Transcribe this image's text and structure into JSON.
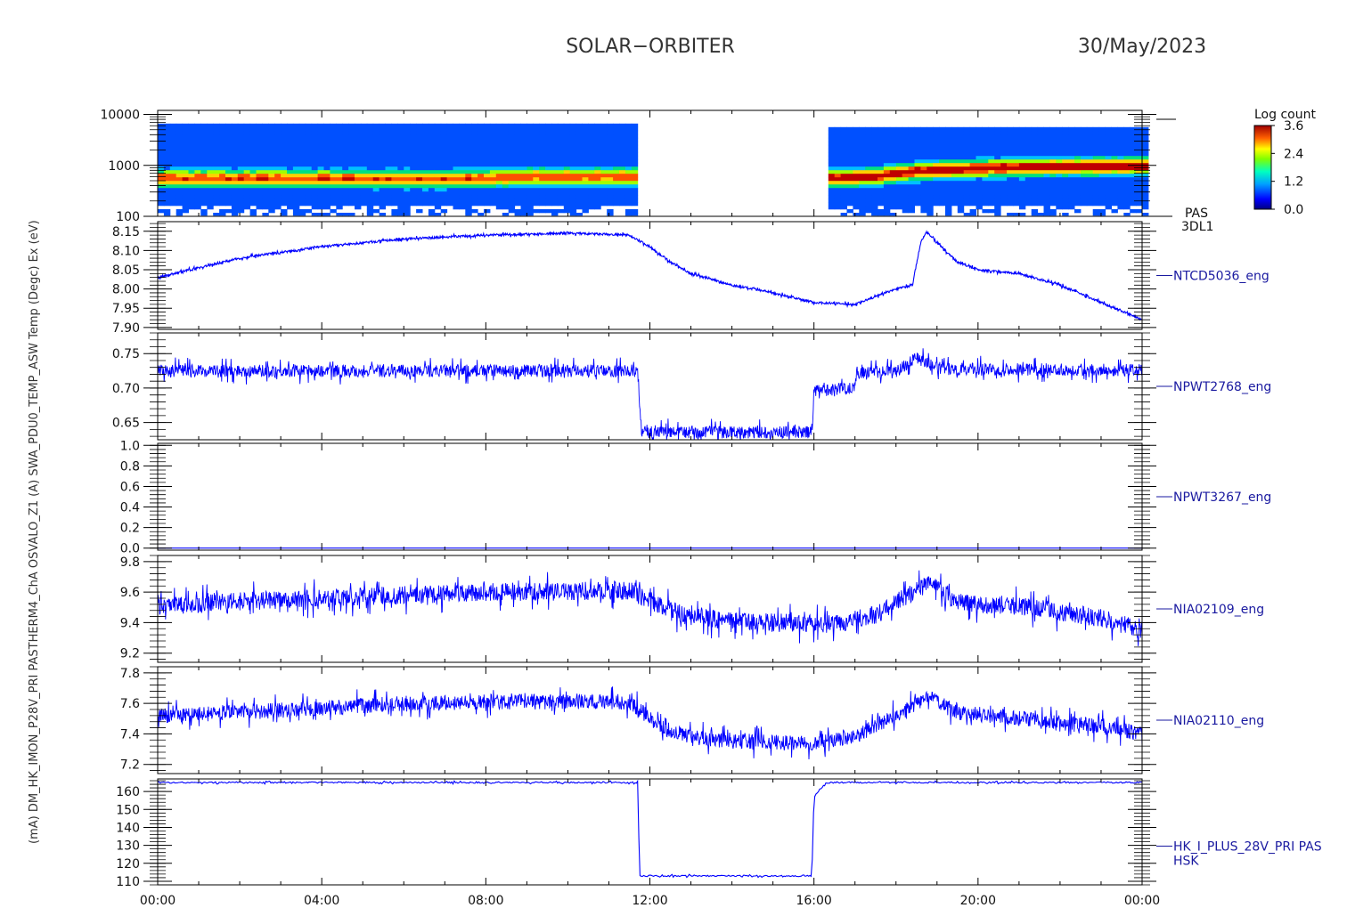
{
  "header": {
    "mission": "SOLAR−ORBITER",
    "date": "30/May/2023"
  },
  "colors": {
    "trace": "#0000ff",
    "label": "#1a1aa0",
    "axis": "#000000"
  },
  "chart_data": {
    "type": "line",
    "x_unit": "hours (UT)",
    "x_range": [
      0,
      24
    ],
    "x_ticks": [
      0,
      4,
      8,
      12,
      16,
      20,
      24
    ],
    "x_tick_labels": [
      "00:00",
      "04:00",
      "08:00",
      "12:00",
      "16:00",
      "20:00",
      "00:00"
    ],
    "y_axis_label_overlap": "(mA) DM_HK_IMON_P28V_PRI PASTHERM4_ChA OSVALO_Z1 (A) SWA_PDU0_TEMP_ASW Temp (Degc) Ex (eV)",
    "panels": [
      {
        "id": "pas-3dl1",
        "type": "heatmap",
        "channel_label": "PAS",
        "channel_label2": "3DL1",
        "y_scale": "log",
        "ylim": [
          100,
          12000
        ],
        "y_ticks": [
          100,
          1000,
          10000
        ],
        "y_tick_labels": [
          "100",
          "1000",
          "10000"
        ],
        "data_gap_hours": [
          11.75,
          16.35
        ],
        "peak_energy_ev": [
          [
            0.5,
            560
          ],
          [
            4,
            560
          ],
          [
            6.5,
            540
          ],
          [
            8,
            560
          ],
          [
            9,
            600
          ],
          [
            11.5,
            600
          ],
          [
            16.4,
            560
          ],
          [
            17.5,
            620
          ],
          [
            18.5,
            780
          ],
          [
            20,
            880
          ],
          [
            22,
            950
          ],
          [
            24,
            980
          ]
        ],
        "colorbar": {
          "label": "Log count",
          "ticks": [
            0.0,
            1.2,
            2.4,
            3.6
          ],
          "tick_labels": [
            "0.0",
            "1.2",
            "2.4",
            "3.6"
          ]
        }
      },
      {
        "id": "ntcd5036",
        "type": "line",
        "channel_label": "NTCD5036_eng",
        "ylim": [
          7.895,
          8.175
        ],
        "y_ticks": [
          7.9,
          7.95,
          8.0,
          8.05,
          8.1,
          8.15
        ],
        "y_tick_labels": [
          "7.90",
          "7.95",
          "8.00",
          "8.05",
          "8.10",
          "8.15"
        ],
        "noise": 0.003,
        "points": [
          [
            0,
            8.03
          ],
          [
            2,
            8.08
          ],
          [
            4,
            8.11
          ],
          [
            6,
            8.13
          ],
          [
            8,
            8.14
          ],
          [
            10,
            8.145
          ],
          [
            11.5,
            8.14
          ],
          [
            12,
            8.11
          ],
          [
            12.5,
            8.07
          ],
          [
            13,
            8.04
          ],
          [
            14,
            8.01
          ],
          [
            15,
            7.99
          ],
          [
            16,
            7.965
          ],
          [
            17,
            7.96
          ],
          [
            18,
            8.0
          ],
          [
            18.4,
            8.01
          ],
          [
            18.6,
            8.12
          ],
          [
            18.75,
            8.15
          ],
          [
            19,
            8.12
          ],
          [
            19.5,
            8.07
          ],
          [
            20,
            8.05
          ],
          [
            21,
            8.04
          ],
          [
            22,
            8.01
          ],
          [
            23,
            7.965
          ],
          [
            24,
            7.92
          ]
        ]
      },
      {
        "id": "npwt2768",
        "type": "line",
        "channel_label": "NPWT2768_eng",
        "ylim": [
          0.625,
          0.78
        ],
        "y_ticks": [
          0.65,
          0.7,
          0.75
        ],
        "y_tick_labels": [
          "0.65",
          "0.70",
          "0.75"
        ],
        "noise": 0.009,
        "points": [
          [
            0,
            0.725
          ],
          [
            11.7,
            0.725
          ],
          [
            11.8,
            0.636
          ],
          [
            15.95,
            0.636
          ],
          [
            16.0,
            0.695
          ],
          [
            17.0,
            0.702
          ],
          [
            17.05,
            0.722
          ],
          [
            18.0,
            0.724
          ],
          [
            18.5,
            0.745
          ],
          [
            19.0,
            0.728
          ],
          [
            24,
            0.726
          ]
        ]
      },
      {
        "id": "npwt3267",
        "type": "line",
        "channel_label": "NPWT3267_eng",
        "ylim": [
          -0.02,
          1.02
        ],
        "y_ticks": [
          0.0,
          0.2,
          0.4,
          0.6,
          0.8,
          1.0
        ],
        "y_tick_labels": [
          "0.0",
          "0.2",
          "0.4",
          "0.6",
          "0.8",
          "1.0"
        ],
        "noise": 0,
        "points": [
          [
            0,
            0.0
          ],
          [
            24,
            0.0
          ]
        ]
      },
      {
        "id": "nia02109",
        "type": "line",
        "channel_label": "NIA02109_eng",
        "ylim": [
          9.14,
          9.84
        ],
        "y_ticks": [
          9.2,
          9.4,
          9.6,
          9.8
        ],
        "y_tick_labels": [
          "9.2",
          "9.4",
          "9.6",
          "9.8"
        ],
        "noise": 0.06,
        "points": [
          [
            0,
            9.5
          ],
          [
            2,
            9.54
          ],
          [
            4,
            9.56
          ],
          [
            6,
            9.58
          ],
          [
            8,
            9.6
          ],
          [
            11.5,
            9.61
          ],
          [
            12.2,
            9.52
          ],
          [
            12.8,
            9.45
          ],
          [
            14,
            9.41
          ],
          [
            15,
            9.4
          ],
          [
            16.5,
            9.39
          ],
          [
            17.5,
            9.45
          ],
          [
            18.8,
            9.66
          ],
          [
            19.5,
            9.53
          ],
          [
            21,
            9.51
          ],
          [
            23,
            9.43
          ],
          [
            24,
            9.35
          ]
        ]
      },
      {
        "id": "nia02110",
        "type": "line",
        "channel_label": "NIA02110_eng",
        "ylim": [
          7.14,
          7.84
        ],
        "y_ticks": [
          7.2,
          7.4,
          7.6,
          7.8
        ],
        "y_tick_labels": [
          "7.2",
          "7.4",
          "7.6",
          "7.8"
        ],
        "noise": 0.05,
        "points": [
          [
            0,
            7.52
          ],
          [
            2,
            7.54
          ],
          [
            4,
            7.57
          ],
          [
            6,
            7.6
          ],
          [
            8,
            7.61
          ],
          [
            11.5,
            7.61
          ],
          [
            12.3,
            7.44
          ],
          [
            13,
            7.38
          ],
          [
            14,
            7.35
          ],
          [
            16,
            7.34
          ],
          [
            17,
            7.38
          ],
          [
            18.8,
            7.64
          ],
          [
            19.5,
            7.54
          ],
          [
            21,
            7.5
          ],
          [
            23,
            7.45
          ],
          [
            24,
            7.4
          ]
        ]
      },
      {
        "id": "hk-i-plus-28v",
        "type": "line",
        "channel_label": "HK_I_PLUS_28V_PRI PAS",
        "channel_label2": "HSK",
        "ylim": [
          108,
          167
        ],
        "y_ticks": [
          110,
          120,
          130,
          140,
          150,
          160
        ],
        "y_tick_labels": [
          "110",
          "120",
          "130",
          "140",
          "150",
          "160"
        ],
        "noise": 0.4,
        "points": [
          [
            0,
            165
          ],
          [
            11.7,
            165
          ],
          [
            11.75,
            113
          ],
          [
            15.95,
            113
          ],
          [
            16.0,
            157
          ],
          [
            16.1,
            160
          ],
          [
            16.3,
            165
          ],
          [
            24,
            165
          ]
        ]
      }
    ]
  }
}
